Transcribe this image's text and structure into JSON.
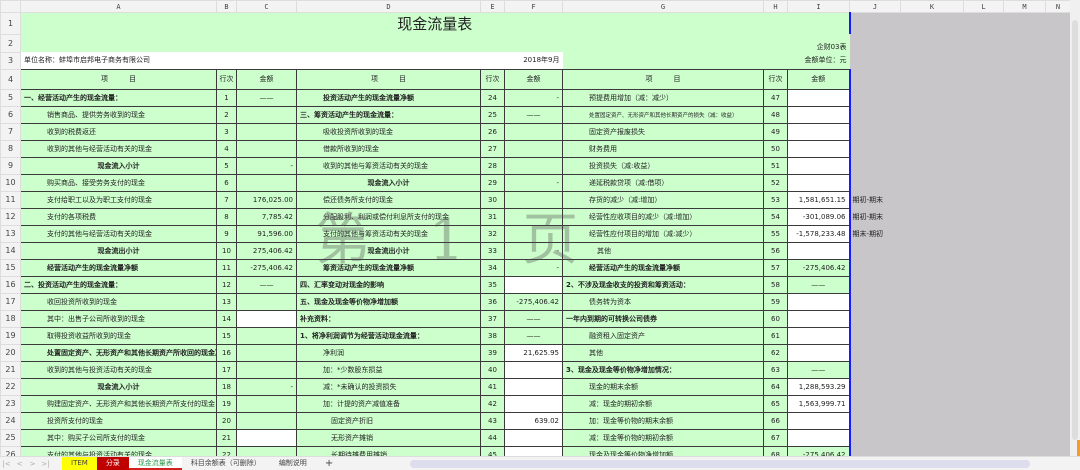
{
  "columns": [
    "A",
    "B",
    "C",
    "D",
    "E",
    "F",
    "G",
    "H",
    "I",
    "J",
    "K",
    "L",
    "M",
    "N"
  ],
  "title": "现金流量表",
  "form_no": "企财03表",
  "company": "单位名称：蚌埠市启邦电子商务有限公司",
  "period": "2018年9月",
  "unit": "金额单位：元",
  "headers": {
    "item": "项　　　目",
    "line": "行次",
    "amount": "金额"
  },
  "watermark": "第 1 页",
  "rows": [
    {
      "n": 5,
      "a": [
        "一、经营活动产生的现金流量：",
        "1",
        "——"
      ],
      "d": [
        "投资活动产生的现金流量净额",
        "24",
        "-"
      ],
      "g": [
        "预提费用增加（减：减少）",
        "47",
        ""
      ]
    },
    {
      "n": 6,
      "a": [
        "销售商品、提供劳务收到的现金",
        "2",
        ""
      ],
      "d": [
        "三、筹资活动产生的现金流量：",
        "25",
        "——"
      ],
      "g": [
        "处置固定资产、无形资产和其他长期资产的损失（减：收益）",
        "48",
        ""
      ]
    },
    {
      "n": 7,
      "a": [
        "收到的税费返还",
        "3",
        ""
      ],
      "d": [
        "吸收投资所收到的现金",
        "26",
        ""
      ],
      "g": [
        "固定资产报废损失",
        "49",
        ""
      ]
    },
    {
      "n": 8,
      "a": [
        "收到的其他与经营活动有关的现金",
        "4",
        ""
      ],
      "d": [
        "借款所收到的现金",
        "27",
        ""
      ],
      "g": [
        "财务费用",
        "50",
        ""
      ]
    },
    {
      "n": 9,
      "a": [
        "现金流入小计",
        "5",
        "-"
      ],
      "d": [
        "收到的其他与筹资活动有关的现金",
        "28",
        ""
      ],
      "g": [
        "投资损失（减:收益）",
        "51",
        ""
      ]
    },
    {
      "n": 10,
      "a": [
        "购买商品、接受劳务支付的现金",
        "6",
        ""
      ],
      "d": [
        "现金流入小计",
        "29",
        "-"
      ],
      "g": [
        "递延税款贷项（减:借项）",
        "52",
        ""
      ]
    },
    {
      "n": 11,
      "a": [
        "支付给职工以及为职工支付的现金",
        "7",
        "176,025.00"
      ],
      "d": [
        "偿还债务所支付的现金",
        "30",
        ""
      ],
      "g": [
        "存货的减少（减:增加）",
        "53",
        "1,581,651.15"
      ],
      "j": "期初-期末"
    },
    {
      "n": 12,
      "a": [
        "支付的各项税费",
        "8",
        "7,785.42"
      ],
      "d": [
        "分配股利、利润或偿付利息所支付的现金",
        "31",
        ""
      ],
      "g": [
        "经营性应收项目的减少（减:增加）",
        "54",
        "-301,089.06"
      ],
      "j": "期初-期末"
    },
    {
      "n": 13,
      "a": [
        "支付的其他与经营活动有关的现金",
        "9",
        "91,596.00"
      ],
      "d": [
        "支付的其他与筹资活动有关的现金",
        "32",
        ""
      ],
      "g": [
        "经营性应付项目的增加（减:减少）",
        "55",
        "-1,578,233.48"
      ],
      "j": "期末-期初"
    },
    {
      "n": 14,
      "a": [
        "现金流出小计",
        "10",
        "275,406.42"
      ],
      "d": [
        "现金流出小计",
        "33",
        "-"
      ],
      "g": [
        "其他",
        "56",
        ""
      ]
    },
    {
      "n": 15,
      "a": [
        "经营活动产生的现金流量净额",
        "11",
        "-275,406.42"
      ],
      "d": [
        "筹资活动产生的现金流量净额",
        "34",
        "-"
      ],
      "g": [
        "经营活动产生的现金流量净额",
        "57",
        "-275,406.42"
      ]
    },
    {
      "n": 16,
      "a": [
        "二、投资活动产生的现金流量：",
        "12",
        "——"
      ],
      "d": [
        "四、汇率变动对现金的影响",
        "35",
        ""
      ],
      "g": [
        "2、不涉及现金收支的投资和筹资活动：",
        "58",
        "——"
      ]
    },
    {
      "n": 17,
      "a": [
        "收回投资所收到的现金",
        "13",
        ""
      ],
      "d": [
        "五、现金及现金等价物净增加额",
        "36",
        "-275,406.42"
      ],
      "g": [
        "债务转为资本",
        "59",
        ""
      ]
    },
    {
      "n": 18,
      "a": [
        "其中：出售子公司所收到的现金",
        "14",
        ""
      ],
      "d": [
        "补充资料：",
        "37",
        "——"
      ],
      "g": [
        "一年内到期的可转换公司债券",
        "60",
        ""
      ]
    },
    {
      "n": 19,
      "a": [
        "取得投资收益所收到的现金",
        "15",
        ""
      ],
      "d": [
        "1、将净利润调节为经营活动现金流量：",
        "38",
        "——"
      ],
      "g": [
        "融资租入固定资产",
        "61",
        ""
      ]
    },
    {
      "n": 20,
      "a": [
        "处置固定资产、无形资产和其他长期资产所收回的现金净额",
        "16",
        ""
      ],
      "d": [
        "净利润",
        "39",
        "21,625.95"
      ],
      "g": [
        "其他",
        "62",
        ""
      ]
    },
    {
      "n": 21,
      "a": [
        "收到的其他与投资活动有关的现金",
        "17",
        ""
      ],
      "d": [
        "加：*少数股东损益",
        "40",
        ""
      ],
      "g": [
        "3、现金及现金等价物净增加情况：",
        "63",
        "——"
      ]
    },
    {
      "n": 22,
      "a": [
        "现金流入小计",
        "18",
        "-"
      ],
      "d": [
        "减：*未确认的投资损失",
        "41",
        ""
      ],
      "g": [
        "现金的期末余额",
        "64",
        "1,288,593.29"
      ]
    },
    {
      "n": 23,
      "a": [
        "购建固定资产、无形资产和其他长期资产所支付的现金",
        "19",
        ""
      ],
      "d": [
        "加：计提的资产减值准备",
        "42",
        ""
      ],
      "g": [
        "减：现金的期初余额",
        "65",
        "1,563,999.71"
      ]
    },
    {
      "n": 24,
      "a": [
        "投资所支付的现金",
        "20",
        ""
      ],
      "d": [
        "固定资产折旧",
        "43",
        "639.02"
      ],
      "g": [
        "加：现金等价物的期末余额",
        "66",
        ""
      ]
    },
    {
      "n": 25,
      "a": [
        "其中：购买子公司所支付的现金",
        "21",
        ""
      ],
      "d": [
        "无形资产摊销",
        "44",
        ""
      ],
      "g": [
        "减：现金等价物的期初余额",
        "67",
        ""
      ]
    },
    {
      "n": 26,
      "a": [
        "支付的其他与投资活动有关的现金",
        "22",
        ""
      ],
      "d": [
        "长期待摊费用摊销",
        "45",
        ""
      ],
      "g": [
        "现金及现金等价物净增加额",
        "68",
        "-275,406.42"
      ]
    }
  ],
  "sheet_tabs": [
    {
      "label": "ITEM",
      "bg": "#ffff00",
      "color": "#444444"
    },
    {
      "label": "分录",
      "bg": "#c00000",
      "color": "#ffffff"
    },
    {
      "label": "现金流量表",
      "bg": "#ffffff",
      "color": "#2e9a4a",
      "active": true
    },
    {
      "label": "科目余额表（可删除）",
      "bg": "#f3f3f3",
      "color": "#444444"
    },
    {
      "label": "编制说明",
      "bg": "#f3f3f3",
      "color": "#444444"
    }
  ],
  "add_sheet": "+",
  "colors": {
    "cell_green": "#ccffcc",
    "selection_border": "#1a1aff",
    "outside_gray": "#c8c6c8"
  }
}
